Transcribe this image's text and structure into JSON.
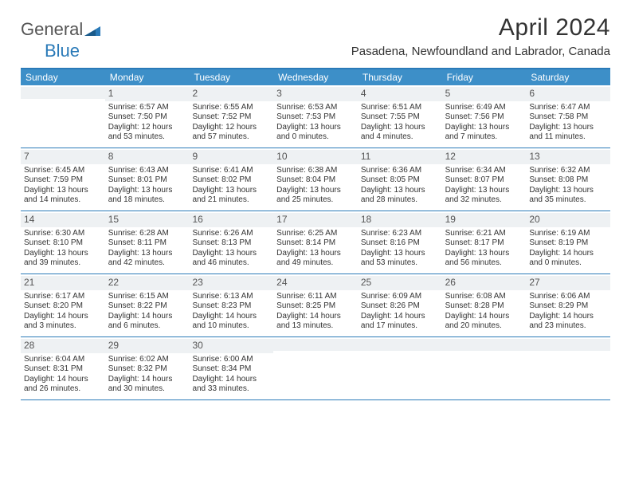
{
  "brand": {
    "text1": "General",
    "text2": "Blue"
  },
  "colors": {
    "header_blue": "#3d8fc8",
    "rule_blue": "#2a7ab8",
    "daynum_bg": "#eef1f3",
    "text": "#333333"
  },
  "title": "April 2024",
  "location": "Pasadena, Newfoundland and Labrador, Canada",
  "weekdays": [
    "Sunday",
    "Monday",
    "Tuesday",
    "Wednesday",
    "Thursday",
    "Friday",
    "Saturday"
  ],
  "weeks": [
    [
      null,
      {
        "n": "1",
        "sunrise": "Sunrise: 6:57 AM",
        "sunset": "Sunset: 7:50 PM",
        "dl1": "Daylight: 12 hours",
        "dl2": "and 53 minutes."
      },
      {
        "n": "2",
        "sunrise": "Sunrise: 6:55 AM",
        "sunset": "Sunset: 7:52 PM",
        "dl1": "Daylight: 12 hours",
        "dl2": "and 57 minutes."
      },
      {
        "n": "3",
        "sunrise": "Sunrise: 6:53 AM",
        "sunset": "Sunset: 7:53 PM",
        "dl1": "Daylight: 13 hours",
        "dl2": "and 0 minutes."
      },
      {
        "n": "4",
        "sunrise": "Sunrise: 6:51 AM",
        "sunset": "Sunset: 7:55 PM",
        "dl1": "Daylight: 13 hours",
        "dl2": "and 4 minutes."
      },
      {
        "n": "5",
        "sunrise": "Sunrise: 6:49 AM",
        "sunset": "Sunset: 7:56 PM",
        "dl1": "Daylight: 13 hours",
        "dl2": "and 7 minutes."
      },
      {
        "n": "6",
        "sunrise": "Sunrise: 6:47 AM",
        "sunset": "Sunset: 7:58 PM",
        "dl1": "Daylight: 13 hours",
        "dl2": "and 11 minutes."
      }
    ],
    [
      {
        "n": "7",
        "sunrise": "Sunrise: 6:45 AM",
        "sunset": "Sunset: 7:59 PM",
        "dl1": "Daylight: 13 hours",
        "dl2": "and 14 minutes."
      },
      {
        "n": "8",
        "sunrise": "Sunrise: 6:43 AM",
        "sunset": "Sunset: 8:01 PM",
        "dl1": "Daylight: 13 hours",
        "dl2": "and 18 minutes."
      },
      {
        "n": "9",
        "sunrise": "Sunrise: 6:41 AM",
        "sunset": "Sunset: 8:02 PM",
        "dl1": "Daylight: 13 hours",
        "dl2": "and 21 minutes."
      },
      {
        "n": "10",
        "sunrise": "Sunrise: 6:38 AM",
        "sunset": "Sunset: 8:04 PM",
        "dl1": "Daylight: 13 hours",
        "dl2": "and 25 minutes."
      },
      {
        "n": "11",
        "sunrise": "Sunrise: 6:36 AM",
        "sunset": "Sunset: 8:05 PM",
        "dl1": "Daylight: 13 hours",
        "dl2": "and 28 minutes."
      },
      {
        "n": "12",
        "sunrise": "Sunrise: 6:34 AM",
        "sunset": "Sunset: 8:07 PM",
        "dl1": "Daylight: 13 hours",
        "dl2": "and 32 minutes."
      },
      {
        "n": "13",
        "sunrise": "Sunrise: 6:32 AM",
        "sunset": "Sunset: 8:08 PM",
        "dl1": "Daylight: 13 hours",
        "dl2": "and 35 minutes."
      }
    ],
    [
      {
        "n": "14",
        "sunrise": "Sunrise: 6:30 AM",
        "sunset": "Sunset: 8:10 PM",
        "dl1": "Daylight: 13 hours",
        "dl2": "and 39 minutes."
      },
      {
        "n": "15",
        "sunrise": "Sunrise: 6:28 AM",
        "sunset": "Sunset: 8:11 PM",
        "dl1": "Daylight: 13 hours",
        "dl2": "and 42 minutes."
      },
      {
        "n": "16",
        "sunrise": "Sunrise: 6:26 AM",
        "sunset": "Sunset: 8:13 PM",
        "dl1": "Daylight: 13 hours",
        "dl2": "and 46 minutes."
      },
      {
        "n": "17",
        "sunrise": "Sunrise: 6:25 AM",
        "sunset": "Sunset: 8:14 PM",
        "dl1": "Daylight: 13 hours",
        "dl2": "and 49 minutes."
      },
      {
        "n": "18",
        "sunrise": "Sunrise: 6:23 AM",
        "sunset": "Sunset: 8:16 PM",
        "dl1": "Daylight: 13 hours",
        "dl2": "and 53 minutes."
      },
      {
        "n": "19",
        "sunrise": "Sunrise: 6:21 AM",
        "sunset": "Sunset: 8:17 PM",
        "dl1": "Daylight: 13 hours",
        "dl2": "and 56 minutes."
      },
      {
        "n": "20",
        "sunrise": "Sunrise: 6:19 AM",
        "sunset": "Sunset: 8:19 PM",
        "dl1": "Daylight: 14 hours",
        "dl2": "and 0 minutes."
      }
    ],
    [
      {
        "n": "21",
        "sunrise": "Sunrise: 6:17 AM",
        "sunset": "Sunset: 8:20 PM",
        "dl1": "Daylight: 14 hours",
        "dl2": "and 3 minutes."
      },
      {
        "n": "22",
        "sunrise": "Sunrise: 6:15 AM",
        "sunset": "Sunset: 8:22 PM",
        "dl1": "Daylight: 14 hours",
        "dl2": "and 6 minutes."
      },
      {
        "n": "23",
        "sunrise": "Sunrise: 6:13 AM",
        "sunset": "Sunset: 8:23 PM",
        "dl1": "Daylight: 14 hours",
        "dl2": "and 10 minutes."
      },
      {
        "n": "24",
        "sunrise": "Sunrise: 6:11 AM",
        "sunset": "Sunset: 8:25 PM",
        "dl1": "Daylight: 14 hours",
        "dl2": "and 13 minutes."
      },
      {
        "n": "25",
        "sunrise": "Sunrise: 6:09 AM",
        "sunset": "Sunset: 8:26 PM",
        "dl1": "Daylight: 14 hours",
        "dl2": "and 17 minutes."
      },
      {
        "n": "26",
        "sunrise": "Sunrise: 6:08 AM",
        "sunset": "Sunset: 8:28 PM",
        "dl1": "Daylight: 14 hours",
        "dl2": "and 20 minutes."
      },
      {
        "n": "27",
        "sunrise": "Sunrise: 6:06 AM",
        "sunset": "Sunset: 8:29 PM",
        "dl1": "Daylight: 14 hours",
        "dl2": "and 23 minutes."
      }
    ],
    [
      {
        "n": "28",
        "sunrise": "Sunrise: 6:04 AM",
        "sunset": "Sunset: 8:31 PM",
        "dl1": "Daylight: 14 hours",
        "dl2": "and 26 minutes."
      },
      {
        "n": "29",
        "sunrise": "Sunrise: 6:02 AM",
        "sunset": "Sunset: 8:32 PM",
        "dl1": "Daylight: 14 hours",
        "dl2": "and 30 minutes."
      },
      {
        "n": "30",
        "sunrise": "Sunrise: 6:00 AM",
        "sunset": "Sunset: 8:34 PM",
        "dl1": "Daylight: 14 hours",
        "dl2": "and 33 minutes."
      },
      null,
      null,
      null,
      null
    ]
  ]
}
